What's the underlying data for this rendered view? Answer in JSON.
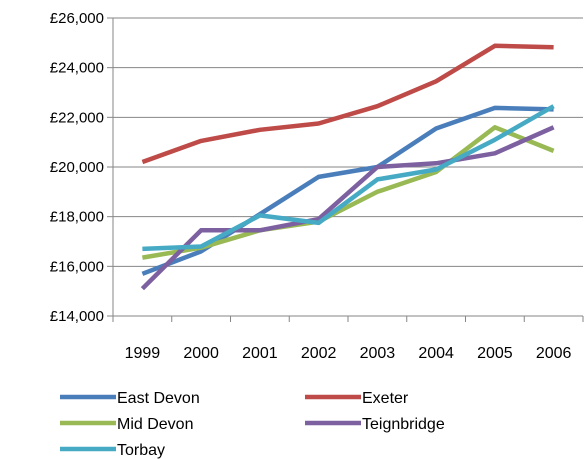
{
  "chart_data": {
    "type": "line",
    "title": "",
    "xlabel": "",
    "ylabel": "",
    "x": [
      "1999",
      "2000",
      "2001",
      "2002",
      "2003",
      "2004",
      "2005",
      "2006"
    ],
    "ylim": [
      14000,
      26000
    ],
    "y_ticks": [
      14000,
      16000,
      18000,
      20000,
      22000,
      24000,
      26000
    ],
    "y_tick_labels": [
      "£14,000",
      "£16,000",
      "£18,000",
      "£20,000",
      "£22,000",
      "£24,000",
      "£26,000"
    ],
    "grid": "horizontal",
    "legend_position": "bottom",
    "series": [
      {
        "name": "East Devon",
        "color": "#4a7ebb",
        "values": [
          15700,
          16600,
          18100,
          19600,
          20000,
          21550,
          22380,
          22320
        ]
      },
      {
        "name": "Exeter",
        "color": "#be4b48",
        "values": [
          20200,
          21050,
          21500,
          21750,
          22450,
          23450,
          24880,
          24820
        ]
      },
      {
        "name": "Mid Devon",
        "color": "#98b954",
        "values": [
          16350,
          16750,
          17450,
          17800,
          19000,
          19800,
          21600,
          20650
        ]
      },
      {
        "name": "Teignbridge",
        "color": "#7d60a0",
        "values": [
          15100,
          17450,
          17450,
          17900,
          20000,
          20150,
          20550,
          21600
        ]
      },
      {
        "name": "Torbay",
        "color": "#46aac5",
        "values": [
          16700,
          16800,
          18050,
          17750,
          19500,
          19900,
          21100,
          22450
        ]
      }
    ]
  }
}
